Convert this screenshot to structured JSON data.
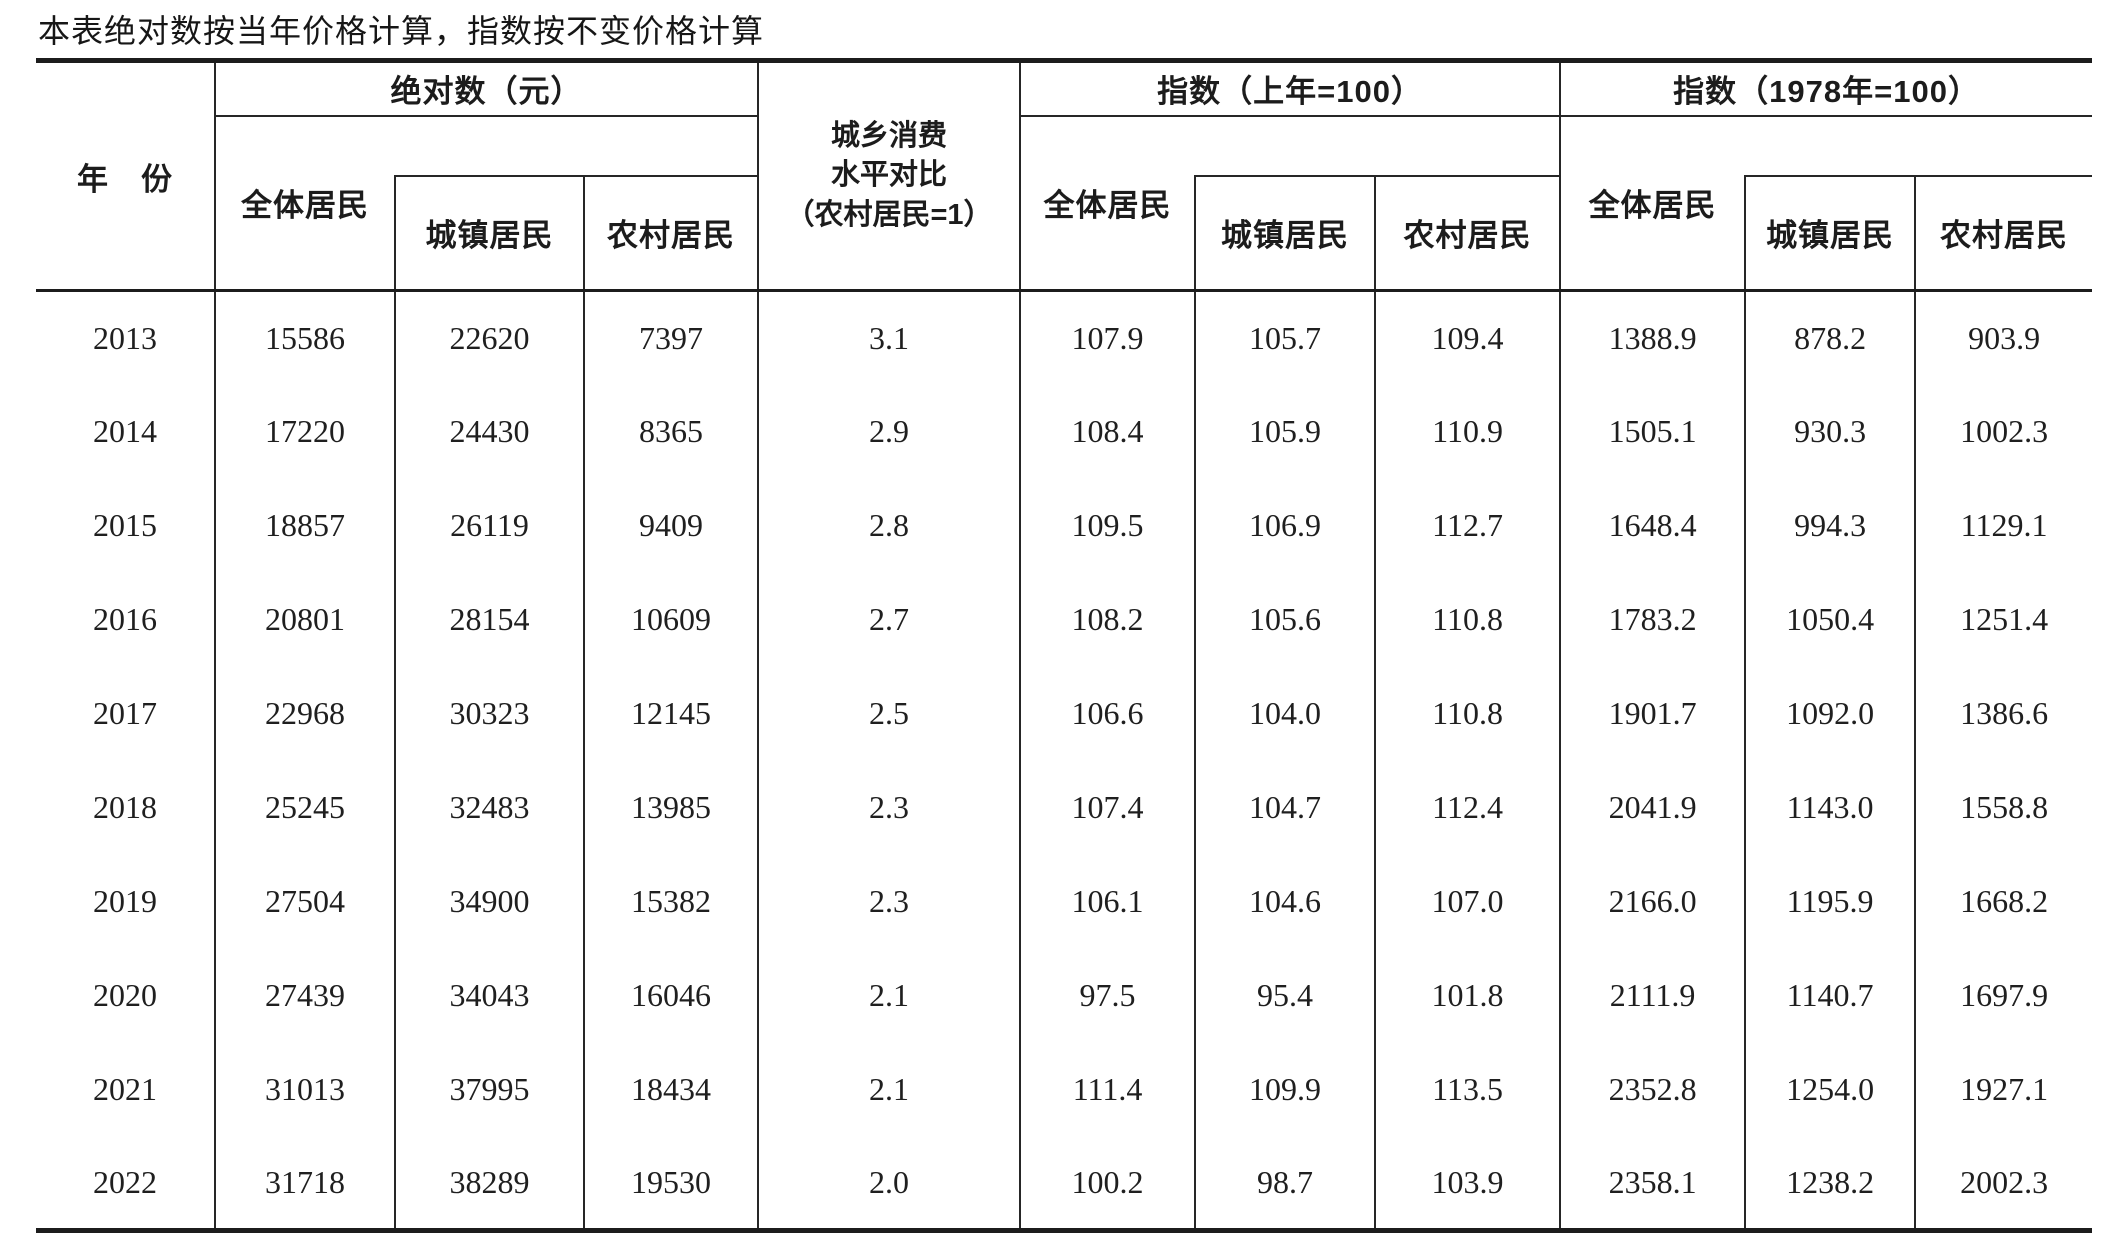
{
  "note": "本表绝对数按当年价格计算，指数按不变价格计算",
  "colors": {
    "ink": "#1c1c1c"
  },
  "header": {
    "year": "年　份",
    "ratio": "城乡消费\n水平对比\n（农村居民=1）",
    "groups": [
      {
        "label": "绝对数（元）",
        "all": "全体居民",
        "urban": "城镇居民",
        "rural": "农村居民"
      },
      {
        "label": "指数（上年=100）",
        "all": "全体居民",
        "urban": "城镇居民",
        "rural": "农村居民"
      },
      {
        "label": "指数（1978年=100）",
        "all": "全体居民",
        "urban": "城镇居民",
        "rural": "农村居民"
      }
    ]
  },
  "rows": [
    {
      "year": "2013",
      "values": [
        "15586",
        "22620",
        "7397",
        "3.1",
        "107.9",
        "105.7",
        "109.4",
        "1388.9",
        "878.2",
        "903.9"
      ]
    },
    {
      "year": "2014",
      "values": [
        "17220",
        "24430",
        "8365",
        "2.9",
        "108.4",
        "105.9",
        "110.9",
        "1505.1",
        "930.3",
        "1002.3"
      ]
    },
    {
      "year": "2015",
      "values": [
        "18857",
        "26119",
        "9409",
        "2.8",
        "109.5",
        "106.9",
        "112.7",
        "1648.4",
        "994.3",
        "1129.1"
      ]
    },
    {
      "year": "2016",
      "values": [
        "20801",
        "28154",
        "10609",
        "2.7",
        "108.2",
        "105.6",
        "110.8",
        "1783.2",
        "1050.4",
        "1251.4"
      ]
    },
    {
      "year": "2017",
      "values": [
        "22968",
        "30323",
        "12145",
        "2.5",
        "106.6",
        "104.0",
        "110.8",
        "1901.7",
        "1092.0",
        "1386.6"
      ]
    },
    {
      "year": "2018",
      "values": [
        "25245",
        "32483",
        "13985",
        "2.3",
        "107.4",
        "104.7",
        "112.4",
        "2041.9",
        "1143.0",
        "1558.8"
      ]
    },
    {
      "year": "2019",
      "values": [
        "27504",
        "34900",
        "15382",
        "2.3",
        "106.1",
        "104.6",
        "107.0",
        "2166.0",
        "1195.9",
        "1668.2"
      ]
    },
    {
      "year": "2020",
      "values": [
        "27439",
        "34043",
        "16046",
        "2.1",
        "97.5",
        "95.4",
        "101.8",
        "2111.9",
        "1140.7",
        "1697.9"
      ]
    },
    {
      "year": "2021",
      "values": [
        "31013",
        "37995",
        "18434",
        "2.1",
        "111.4",
        "109.9",
        "113.5",
        "2352.8",
        "1254.0",
        "1927.1"
      ]
    },
    {
      "year": "2022",
      "values": [
        "31718",
        "38289",
        "19530",
        "2.0",
        "100.2",
        "98.7",
        "103.9",
        "2358.1",
        "1238.2",
        "2002.3"
      ]
    }
  ]
}
